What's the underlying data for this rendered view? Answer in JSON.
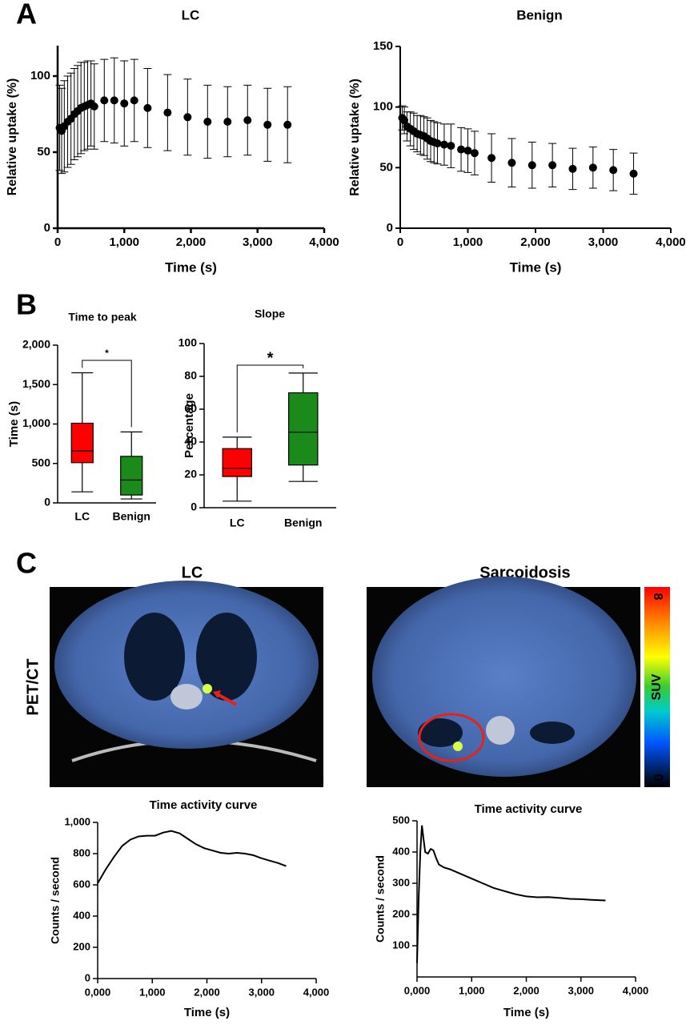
{
  "figure": {
    "panels": [
      "A",
      "B",
      "C"
    ],
    "image_titles": [
      "LC",
      "Sarcoidosis"
    ],
    "row_label": "PET/CT",
    "colorbar": {
      "label": "SUV",
      "ticks": [
        0,
        8
      ]
    }
  },
  "chart_data": [
    {
      "type": "scatter",
      "title": "LC",
      "xlabel": "Time (s)",
      "ylabel": "Relative uptake (%)",
      "color": "#000000",
      "x": [
        30,
        60,
        100,
        150,
        200,
        250,
        300,
        350,
        400,
        450,
        500,
        550,
        700,
        850,
        1000,
        1150,
        1350,
        1650,
        1950,
        2250,
        2550,
        2850,
        3150,
        3450
      ],
      "values": [
        66,
        64,
        67,
        70,
        72,
        75,
        77,
        79,
        80,
        81,
        82,
        80,
        84,
        84,
        82,
        84,
        79,
        76,
        73,
        70,
        70,
        71,
        68,
        68
      ],
      "errors": [
        28,
        28,
        30,
        30,
        30,
        30,
        30,
        30,
        29,
        29,
        28,
        28,
        27,
        28,
        28,
        27,
        26,
        25,
        25,
        24,
        23,
        23,
        24,
        25
      ],
      "xlim": [
        0,
        4000
      ],
      "xticks": [
        0,
        {
          "value": 1000,
          "label": "1,000"
        },
        {
          "value": 2000,
          "label": "2,000"
        },
        {
          "value": 3000,
          "label": "3,000"
        },
        {
          "value": 4000,
          "label": "4,000"
        }
      ],
      "ylim": [
        0,
        120
      ],
      "yticks": [
        0,
        50,
        100
      ]
    },
    {
      "type": "scatter",
      "title": "Benign",
      "xlabel": "Time (s)",
      "ylabel": "Relative uptake (%)",
      "color": "#000000",
      "x": [
        30,
        60,
        100,
        150,
        200,
        250,
        300,
        350,
        400,
        450,
        500,
        550,
        650,
        750,
        900,
        1000,
        1100,
        1350,
        1650,
        1950,
        2250,
        2550,
        2850,
        3150,
        3450
      ],
      "values": [
        91,
        89,
        84,
        82,
        80,
        78,
        77,
        76,
        74,
        72,
        71,
        70,
        69,
        68,
        65,
        64,
        62,
        58,
        54,
        52,
        52,
        49,
        50,
        48,
        45
      ],
      "errors": [
        10,
        11,
        12,
        14,
        15,
        15,
        16,
        16,
        17,
        17,
        17,
        17,
        17,
        18,
        18,
        18,
        18,
        20,
        20,
        19,
        18,
        17,
        17,
        17,
        17
      ],
      "xlim": [
        0,
        4000
      ],
      "xticks": [
        0,
        {
          "value": 1000,
          "label": "1,000"
        },
        {
          "value": 2000,
          "label": "2,000"
        },
        {
          "value": 3000,
          "label": "3,000"
        },
        {
          "value": 4000,
          "label": "4,000"
        }
      ],
      "ylim": [
        0,
        150
      ],
      "yticks": [
        0,
        50,
        100,
        150
      ]
    },
    {
      "type": "box",
      "title": "Time to peak",
      "ylabel": "Time (s)",
      "categories": [
        "LC",
        "Benign"
      ],
      "annotation": "*",
      "boxes": [
        {
          "min": 140,
          "q1": 510,
          "median": 660,
          "q3": 1010,
          "max": 1650,
          "color": "#ff0000"
        },
        {
          "min": 50,
          "q1": 100,
          "median": 290,
          "q3": 590,
          "max": 900,
          "color": "#1a8a1a"
        }
      ],
      "ylim": [
        0,
        2000
      ],
      "yticks": [
        0,
        500,
        {
          "value": 1000,
          "label": "1,000"
        },
        {
          "value": 1500,
          "label": "1,500"
        },
        {
          "value": 2000,
          "label": "2,000"
        }
      ]
    },
    {
      "type": "box",
      "title": "Slope",
      "ylabel": "Percentage",
      "categories": [
        "LC",
        "Benign"
      ],
      "annotation": "*",
      "boxes": [
        {
          "min": 4,
          "q1": 19,
          "median": 24,
          "q3": 36,
          "max": 43,
          "color": "#ff0000"
        },
        {
          "min": 16,
          "q1": 26,
          "median": 46,
          "q3": 70,
          "max": 82,
          "color": "#1a8a1a"
        }
      ],
      "ylim": [
        0,
        100
      ],
      "yticks": [
        0,
        20,
        40,
        60,
        80,
        100
      ]
    },
    {
      "type": "line",
      "title": "Time activity curve",
      "xlabel": "Time (s)",
      "ylabel": "Counts / second",
      "color": "#000000",
      "x": [
        0,
        150,
        300,
        450,
        600,
        750,
        900,
        1050,
        1200,
        1350,
        1500,
        1650,
        1800,
        1950,
        2100,
        2250,
        2400,
        2550,
        2700,
        2850,
        3000,
        3150,
        3300,
        3450
      ],
      "values": [
        610,
        700,
        780,
        850,
        890,
        910,
        915,
        915,
        935,
        945,
        930,
        895,
        860,
        835,
        820,
        805,
        800,
        805,
        800,
        790,
        770,
        755,
        740,
        720
      ],
      "xlim": [
        0,
        4000
      ],
      "xticks": [
        {
          "value": 0,
          "label": "0,000"
        },
        {
          "value": 1000,
          "label": "1,000"
        },
        {
          "value": 2000,
          "label": "2,000"
        },
        {
          "value": 3000,
          "label": "3,000"
        },
        {
          "value": 4000,
          "label": "4,000"
        }
      ],
      "ylim": [
        0,
        1000
      ],
      "yticks": [
        0,
        200,
        400,
        600,
        800,
        {
          "value": 1000,
          "label": "1,000"
        }
      ]
    },
    {
      "type": "line",
      "title": "Time activity curve",
      "xlabel": "Time (s)",
      "ylabel": "Counts / second",
      "color": "#000000",
      "x": [
        0,
        30,
        60,
        90,
        120,
        150,
        200,
        250,
        300,
        350,
        400,
        500,
        600,
        800,
        1000,
        1200,
        1400,
        1600,
        1800,
        2000,
        2200,
        2400,
        2600,
        2800,
        3000,
        3200,
        3450
      ],
      "values": [
        45,
        250,
        400,
        485,
        440,
        400,
        395,
        410,
        405,
        380,
        360,
        350,
        345,
        330,
        315,
        300,
        285,
        275,
        265,
        258,
        255,
        256,
        253,
        250,
        249,
        247,
        245
      ],
      "xlim": [
        0,
        4000
      ],
      "xticks": [
        {
          "value": 0,
          "label": "0,000"
        },
        {
          "value": 1000,
          "label": "1,000"
        },
        {
          "value": 2000,
          "label": "2,000"
        },
        {
          "value": 3000,
          "label": "3,000"
        },
        {
          "value": 4000,
          "label": "4,000"
        }
      ],
      "ylim": [
        0,
        500
      ],
      "yticks": [
        100,
        200,
        300,
        400,
        500
      ]
    }
  ]
}
